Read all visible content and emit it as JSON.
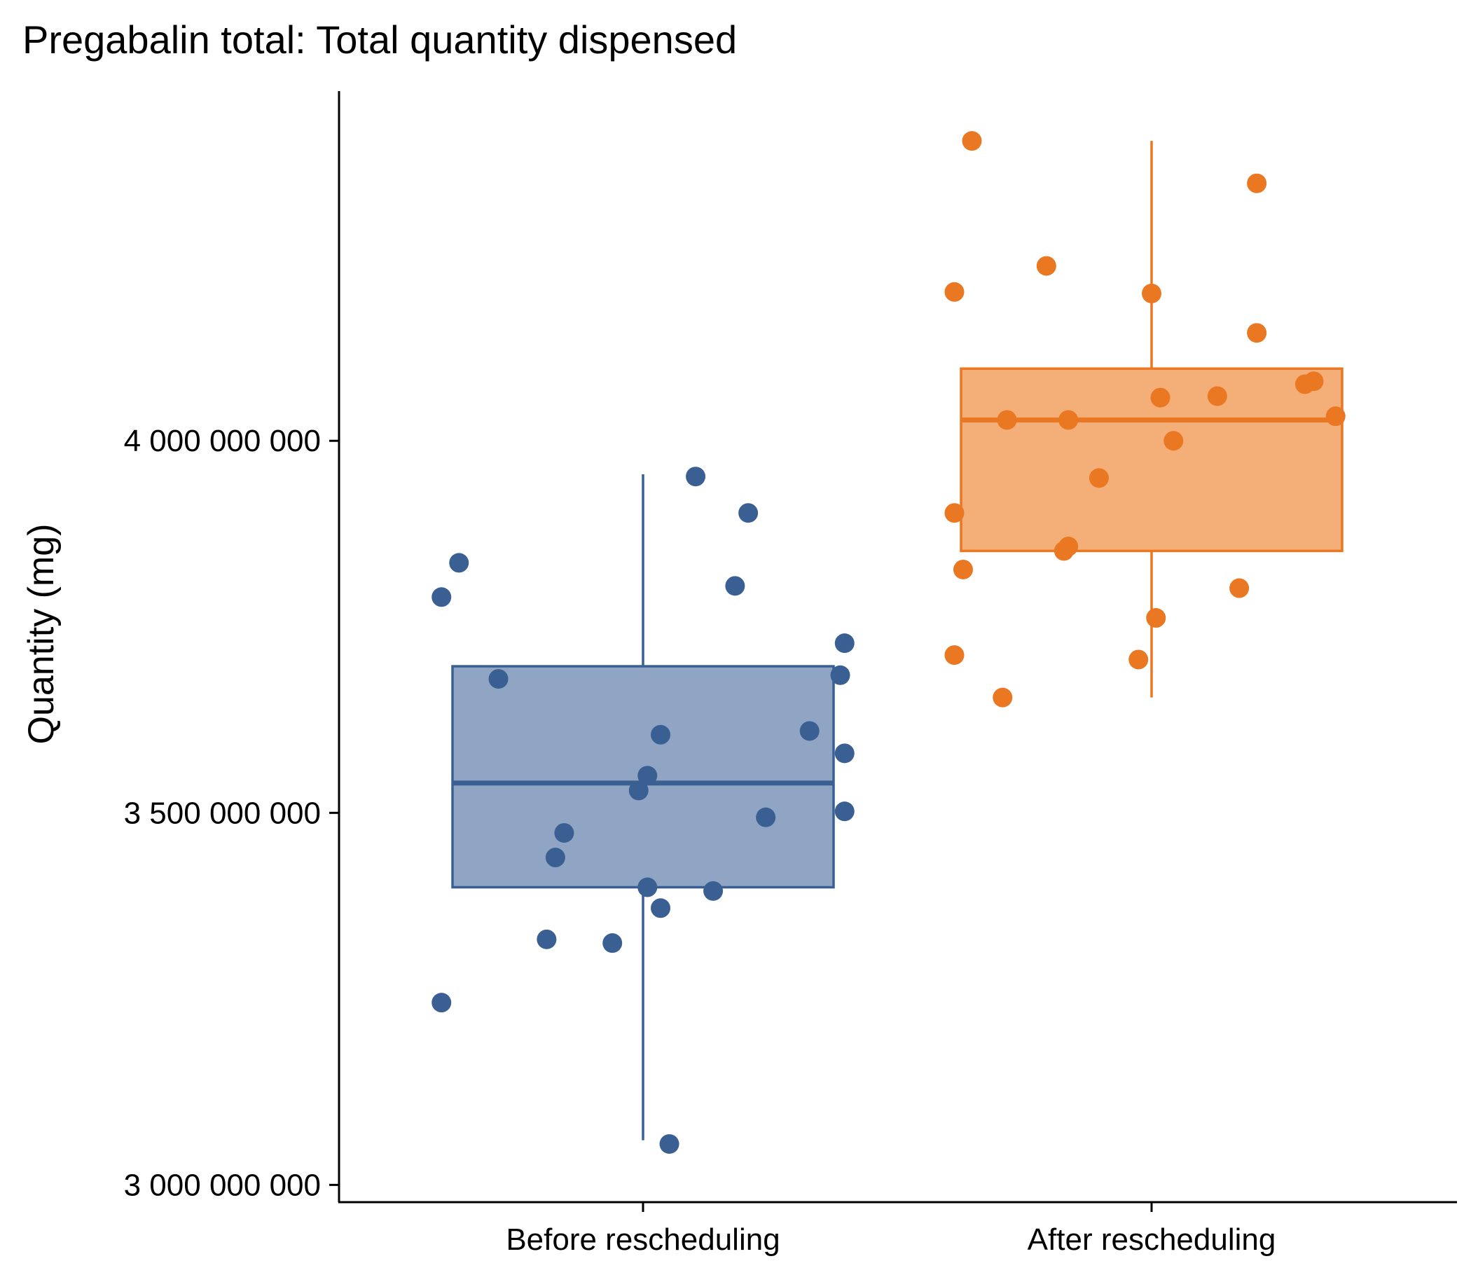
{
  "chart_data": {
    "type": "box",
    "title": "Pregabalin total: Total quantity dispensed",
    "xlabel": "",
    "ylabel": "Quantity (mg)",
    "ylim": [
      2990000000,
      4470000000
    ],
    "yticks": [
      3000000000,
      3500000000,
      4000000000
    ],
    "ytick_labels": [
      "3 000 000 000",
      "3 500 000 000",
      "4 000 000 000"
    ],
    "categories": [
      "Before rescheduling",
      "After rescheduling"
    ],
    "grid": false,
    "groups": [
      {
        "category": "Before rescheduling",
        "color": "#3a6093",
        "fill": "#8fa5c3",
        "box": {
          "whisker_low": 3060000000,
          "q1": 3400000000,
          "median": 3540000000,
          "q3": 3697000000,
          "whisker_high": 3955000000
        },
        "points": [
          {
            "x": -0.46,
            "y": 3245000000
          },
          {
            "x": -0.46,
            "y": 3790000000
          },
          {
            "x": -0.42,
            "y": 3836000000
          },
          {
            "x": -0.33,
            "y": 3680000000
          },
          {
            "x": -0.22,
            "y": 3330000000
          },
          {
            "x": -0.2,
            "y": 3440000000
          },
          {
            "x": -0.18,
            "y": 3473000000
          },
          {
            "x": -0.07,
            "y": 3325000000
          },
          {
            "x": -0.01,
            "y": 3530000000
          },
          {
            "x": 0.01,
            "y": 3400000000
          },
          {
            "x": 0.01,
            "y": 3550000000
          },
          {
            "x": 0.04,
            "y": 3372000000
          },
          {
            "x": 0.04,
            "y": 3605000000
          },
          {
            "x": 0.06,
            "y": 3055000000
          },
          {
            "x": 0.12,
            "y": 3952000000
          },
          {
            "x": 0.16,
            "y": 3395000000
          },
          {
            "x": 0.21,
            "y": 3805000000
          },
          {
            "x": 0.24,
            "y": 3903000000
          },
          {
            "x": 0.28,
            "y": 3494000000
          },
          {
            "x": 0.38,
            "y": 3610000000
          },
          {
            "x": 0.45,
            "y": 3685000000
          },
          {
            "x": 0.46,
            "y": 3580000000
          },
          {
            "x": 0.46,
            "y": 3728000000
          },
          {
            "x": 0.46,
            "y": 3502000000
          }
        ]
      },
      {
        "category": "After rescheduling",
        "color": "#ea7722",
        "fill": "#f4ae78",
        "box": {
          "whisker_low": 3655000000,
          "q1": 3852000000,
          "median": 4028000000,
          "q3": 4097000000,
          "whisker_high": 4403000000
        },
        "points": [
          {
            "x": -0.45,
            "y": 3712000000
          },
          {
            "x": -0.45,
            "y": 3903000000
          },
          {
            "x": -0.45,
            "y": 4200000000
          },
          {
            "x": -0.43,
            "y": 3827000000
          },
          {
            "x": -0.41,
            "y": 4403000000
          },
          {
            "x": -0.34,
            "y": 3655000000
          },
          {
            "x": -0.33,
            "y": 4028000000
          },
          {
            "x": -0.24,
            "y": 4235000000
          },
          {
            "x": -0.2,
            "y": 3852000000
          },
          {
            "x": -0.19,
            "y": 3858000000
          },
          {
            "x": -0.19,
            "y": 4028000000
          },
          {
            "x": -0.12,
            "y": 3950000000
          },
          {
            "x": -0.03,
            "y": 3706000000
          },
          {
            "x": 0.0,
            "y": 4198000000
          },
          {
            "x": 0.01,
            "y": 3762000000
          },
          {
            "x": 0.02,
            "y": 4058000000
          },
          {
            "x": 0.05,
            "y": 4000000000
          },
          {
            "x": 0.15,
            "y": 4060000000
          },
          {
            "x": 0.2,
            "y": 3802000000
          },
          {
            "x": 0.24,
            "y": 4145000000
          },
          {
            "x": 0.24,
            "y": 4346000000
          },
          {
            "x": 0.35,
            "y": 4076000000
          },
          {
            "x": 0.37,
            "y": 4080000000
          },
          {
            "x": 0.42,
            "y": 4033000000
          }
        ]
      }
    ]
  }
}
